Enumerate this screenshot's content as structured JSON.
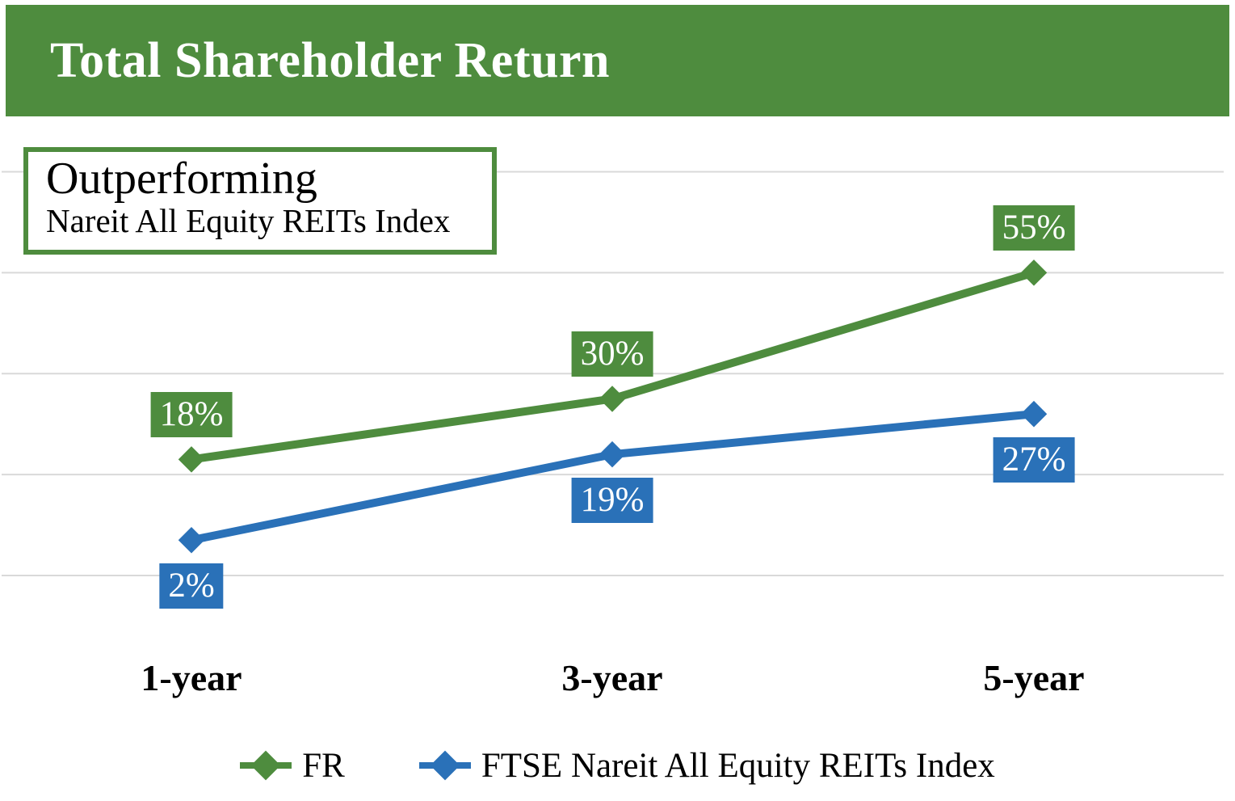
{
  "header": {
    "title": "Total Shareholder Return"
  },
  "callout": {
    "heading": "Outperforming",
    "subheading": "Nareit All Equity REITs Index"
  },
  "chart_data": {
    "type": "line",
    "title": "Total Shareholder Return",
    "annotation": "Outperforming Nareit All Equity REITs Index",
    "categories": [
      "1-year",
      "3-year",
      "5-year"
    ],
    "series": [
      {
        "name": "FR",
        "color": "#4e8c3e",
        "values": [
          18,
          30,
          55
        ],
        "data_labels": [
          "18%",
          "30%",
          "55%"
        ],
        "label_position": "above"
      },
      {
        "name": "FTSE Nareit All Equity REITs Index",
        "color": "#2a71b8",
        "values": [
          2,
          19,
          27
        ],
        "data_labels": [
          "2%",
          "19%",
          "27%"
        ],
        "label_position": "below"
      }
    ],
    "ylim": [
      -5,
      75
    ],
    "gridline_values": [
      -5,
      15,
      35,
      55,
      75
    ],
    "grid": "horizontal-only",
    "y_axis_visible": false,
    "legend_position": "bottom"
  },
  "colors": {
    "accent_green": "#4e8c3e",
    "accent_blue": "#2a71b8",
    "gridline": "#d9d9d9",
    "banner_text": "#ffffff",
    "data_label_text": "#ffffff",
    "body_text": "#000000"
  }
}
